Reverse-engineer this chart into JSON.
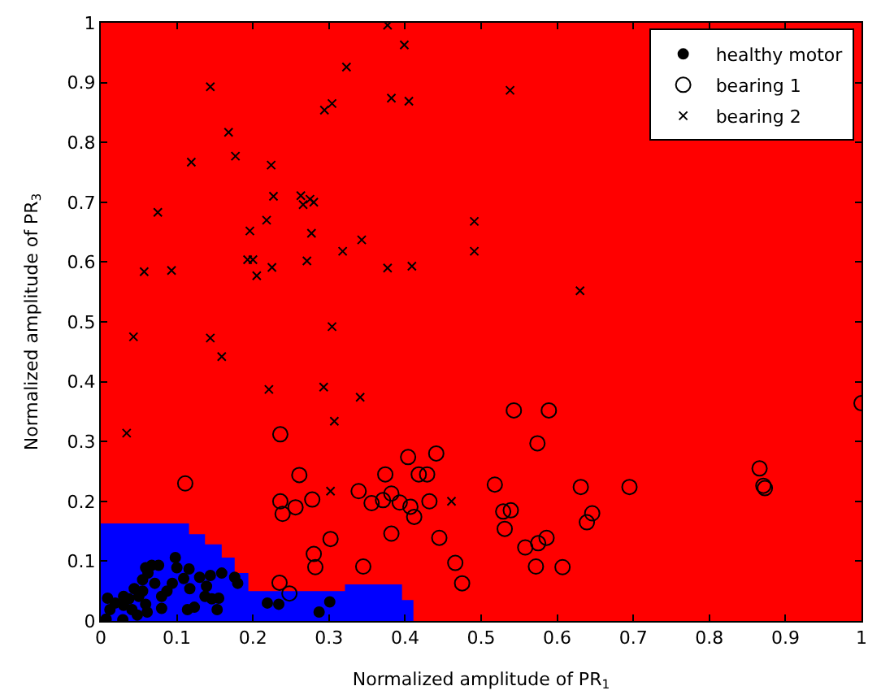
{
  "chart_data": {
    "type": "scatter",
    "xlabel": "Normalized amplitude of PR$_{1}$",
    "ylabel": "Normalized amplitude of PR$_{3}$",
    "xlim": [
      0,
      1
    ],
    "ylim": [
      0,
      1
    ],
    "xticks": [
      0,
      0.1,
      0.2,
      0.3,
      0.4,
      0.5,
      0.6,
      0.7,
      0.8,
      0.9,
      1
    ],
    "yticks": [
      0,
      0.1,
      0.2,
      0.3,
      0.4,
      0.5,
      0.6,
      0.7,
      0.8,
      0.9,
      1
    ],
    "legend": "top right",
    "series": [
      {
        "type": "area",
        "color": "#ff0000",
        "x": [
          0,
          1
        ],
        "values": [
          1,
          1
        ]
      },
      {
        "type": "area",
        "color": "#0000ff",
        "x": [
          0,
          0.116,
          0.137,
          0.159,
          0.176,
          0.194,
          0.321,
          0.396,
          0.411
        ],
        "values": [
          0.163,
          0.145,
          0.128,
          0.106,
          0.08,
          0.05,
          0.061,
          0.035,
          0.035
        ]
      },
      {
        "name": "healthy motor",
        "color": "#000000",
        "marker": "circle",
        "x": [
          0.009,
          0.019,
          0.03,
          0.012,
          0.007,
          0.029,
          0.041,
          0.05,
          0.059,
          0.044,
          0.055,
          0.059,
          0.067,
          0.076,
          0.062,
          0.071,
          0.055,
          0.037,
          0.048,
          0.08,
          0.087,
          0.08,
          0.098,
          0.1,
          0.109,
          0.114,
          0.123,
          0.094,
          0.117,
          0.13,
          0.137,
          0.146,
          0.155,
          0.153,
          0.144,
          0.139,
          0.159,
          0.176,
          0.18,
          0.219,
          0.234,
          0.287,
          0.301,
          0.116,
          0.03,
          0.061
        ],
        "values": [
          0.038,
          0.03,
          0.041,
          0.019,
          0.003,
          0.002,
          0.019,
          0.041,
          0.028,
          0.054,
          0.069,
          0.089,
          0.093,
          0.093,
          0.08,
          0.063,
          0.05,
          0.037,
          0.01,
          0.021,
          0.05,
          0.041,
          0.106,
          0.089,
          0.071,
          0.019,
          0.023,
          0.063,
          0.054,
          0.073,
          0.041,
          0.037,
          0.038,
          0.019,
          0.076,
          0.058,
          0.08,
          0.073,
          0.063,
          0.03,
          0.028,
          0.015,
          0.032,
          0.087,
          0.026,
          0.015
        ]
      },
      {
        "name": "bearing 1",
        "color": "#000000",
        "marker": "circle-open",
        "x": [
          0.111,
          0.236,
          0.261,
          0.236,
          0.256,
          0.278,
          0.239,
          0.302,
          0.28,
          0.282,
          0.235,
          0.248,
          0.404,
          0.441,
          0.374,
          0.418,
          0.429,
          0.339,
          0.382,
          0.371,
          0.356,
          0.393,
          0.407,
          0.412,
          0.432,
          0.382,
          0.445,
          0.345,
          0.466,
          0.475,
          0.518,
          0.529,
          0.539,
          0.531,
          0.574,
          0.558,
          0.575,
          0.586,
          0.572,
          0.607,
          0.631,
          0.695,
          0.646,
          0.639,
          0.866,
          0.871,
          0.873,
          0.543,
          0.589,
          1.0
        ],
        "values": [
          0.23,
          0.312,
          0.244,
          0.2,
          0.19,
          0.203,
          0.179,
          0.137,
          0.112,
          0.09,
          0.064,
          0.046,
          0.274,
          0.28,
          0.245,
          0.245,
          0.245,
          0.217,
          0.213,
          0.202,
          0.197,
          0.198,
          0.191,
          0.174,
          0.2,
          0.146,
          0.139,
          0.091,
          0.097,
          0.063,
          0.228,
          0.183,
          0.185,
          0.154,
          0.297,
          0.123,
          0.13,
          0.139,
          0.091,
          0.09,
          0.224,
          0.224,
          0.18,
          0.165,
          0.255,
          0.226,
          0.222,
          0.352,
          0.352,
          0.364
        ]
      },
      {
        "name": "bearing 2",
        "color": "#000000",
        "marker": "x",
        "x": [
          0.377,
          0.399,
          0.323,
          0.144,
          0.382,
          0.405,
          0.294,
          0.304,
          0.168,
          0.177,
          0.119,
          0.224,
          0.075,
          0.227,
          0.263,
          0.266,
          0.275,
          0.28,
          0.218,
          0.196,
          0.277,
          0.491,
          0.343,
          0.318,
          0.491,
          0.193,
          0.2,
          0.271,
          0.057,
          0.093,
          0.205,
          0.225,
          0.377,
          0.409,
          0.304,
          0.043,
          0.144,
          0.159,
          0.221,
          0.293,
          0.341,
          0.307,
          0.034,
          0.538,
          0.63,
          0.302,
          0.461
        ],
        "values": [
          0.996,
          0.963,
          0.926,
          0.893,
          0.874,
          0.869,
          0.854,
          0.865,
          0.817,
          0.777,
          0.767,
          0.762,
          0.683,
          0.71,
          0.711,
          0.696,
          0.705,
          0.7,
          0.67,
          0.652,
          0.648,
          0.668,
          0.637,
          0.618,
          0.618,
          0.604,
          0.604,
          0.602,
          0.584,
          0.586,
          0.577,
          0.591,
          0.59,
          0.593,
          0.492,
          0.475,
          0.473,
          0.442,
          0.387,
          0.391,
          0.374,
          0.334,
          0.314,
          0.887,
          0.552,
          0.217,
          0.2
        ]
      }
    ]
  }
}
